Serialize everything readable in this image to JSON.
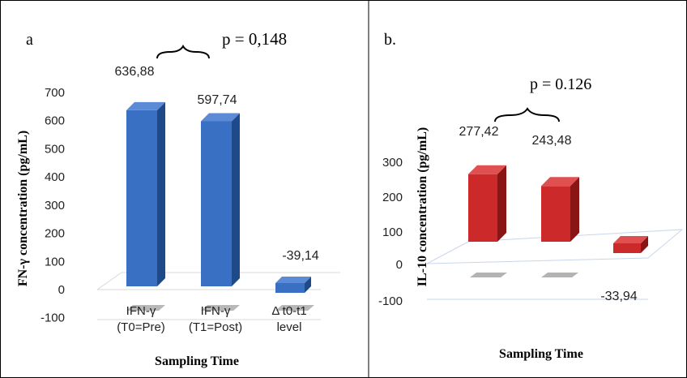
{
  "chart_data": [
    {
      "type": "bar",
      "panel_label": "a",
      "categories": [
        "IFN-γ (T0=Pre)",
        "IFN-γ (T1=Post)",
        "Δ t0-t1 level"
      ],
      "category_lines": [
        [
          "IFN-γ",
          "(T0=Pre)"
        ],
        [
          "IFN-γ",
          "(T1=Post)"
        ],
        [
          "Δ t0-t1",
          "level"
        ]
      ],
      "values": [
        636.88,
        597.74,
        -39.14
      ],
      "data_labels": [
        "636,88",
        "597,74",
        "-39,14"
      ],
      "ylabel": "FN-γ concentration (pg/mL)",
      "xlabel": "Sampling Time",
      "ylim": [
        -100,
        700
      ],
      "yticks": [
        -100,
        0,
        100,
        200,
        300,
        400,
        500,
        600,
        700
      ],
      "annotation": "p = 0,148",
      "colors": {
        "front": "#3a70c4",
        "side": "#1f4a8a",
        "top": "#5b8ad6",
        "shadow": "#a6a6a6"
      }
    },
    {
      "type": "bar",
      "panel_label": "b.",
      "categories": [
        "",
        "",
        ""
      ],
      "values": [
        277.42,
        243.48,
        -33.94
      ],
      "data_labels": [
        "277,42",
        "243,48",
        "-33,94"
      ],
      "ylabel": "IL-10 concentration (pg/mL)",
      "xlabel": "Sampling Time",
      "ylim": [
        -100,
        300
      ],
      "yticks": [
        -100,
        0,
        100,
        200,
        300
      ],
      "annotation": "p = 0.126",
      "colors": {
        "front": "#cc2a2a",
        "side": "#8a1515",
        "top": "#e05050",
        "shadow": "#a6a6a6"
      }
    }
  ]
}
